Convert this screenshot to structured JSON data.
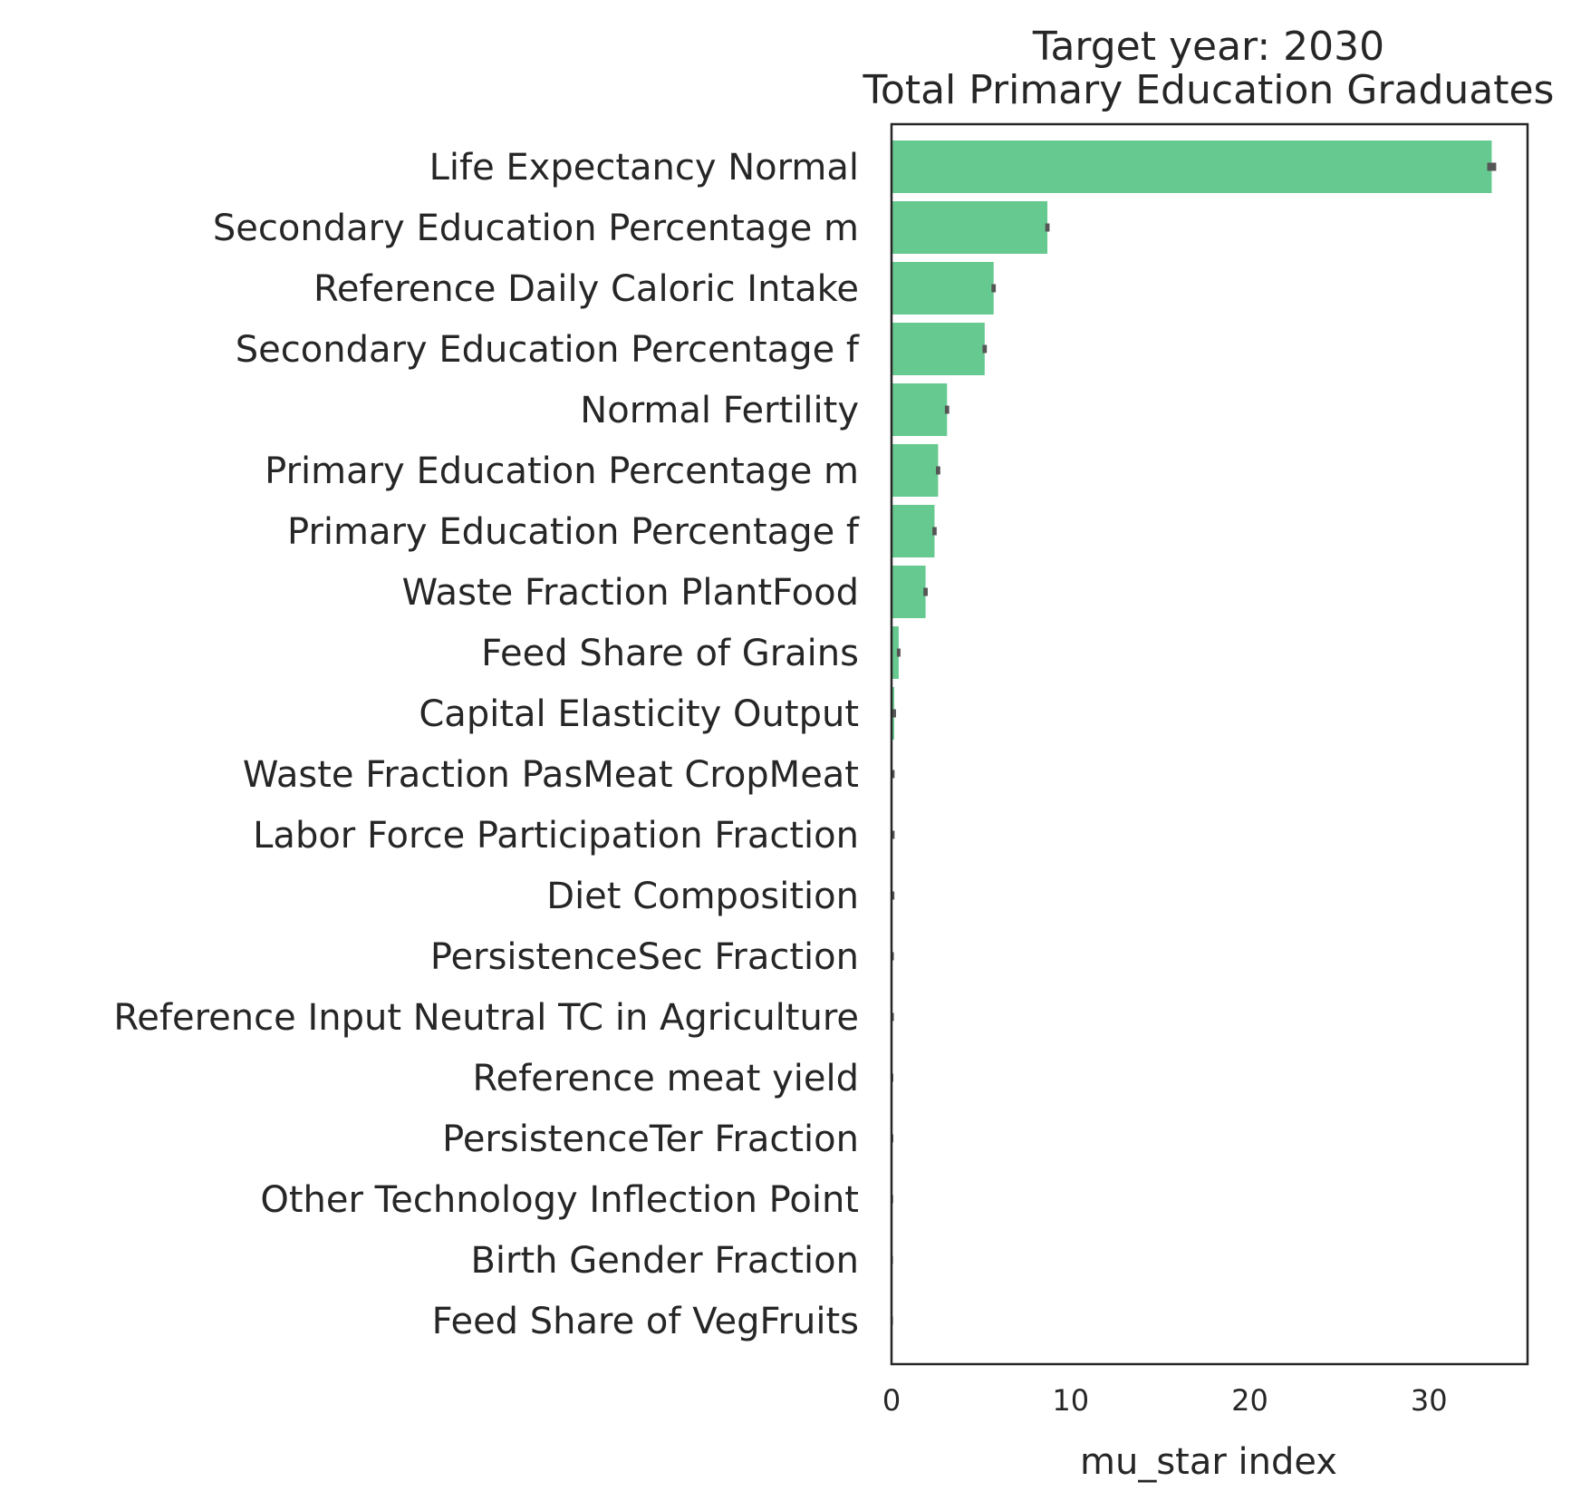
{
  "chart_data": {
    "type": "bar",
    "orientation": "horizontal",
    "title": "Target year: 2030",
    "subtitle": "Total Primary Education Graduates",
    "xlabel": "mu_star index",
    "ylabel": "",
    "xlim": [
      0,
      35.5
    ],
    "xticks": [
      0,
      10,
      20,
      30
    ],
    "grid": false,
    "bar_color": "#66c990",
    "errorbar_color": "#555555",
    "categories": [
      "Life Expectancy Normal",
      "Secondary Education Percentage m",
      "Reference Daily Caloric Intake",
      "Secondary Education Percentage f",
      "Normal Fertility",
      "Primary Education Percentage m",
      "Primary Education Percentage f",
      "Waste Fraction PlantFood",
      "Feed Share of Grains",
      "Capital Elasticity Output",
      "Waste Fraction PasMeat CropMeat",
      "Labor Force Participation Fraction",
      "Diet Composition",
      "PersistenceSec Fraction",
      "Reference Input Neutral TC in Agriculture",
      "Reference meat yield",
      "PersistenceTer Fraction",
      "Other Technology Inflection Point",
      "Birth Gender Fraction",
      "Feed Share of VegFruits"
    ],
    "values": [
      33.5,
      8.7,
      5.7,
      5.2,
      3.1,
      2.6,
      2.4,
      1.9,
      0.4,
      0.15,
      0.05,
      0.05,
      0.04,
      0.03,
      0.03,
      0.02,
      0.02,
      0.02,
      0.01,
      0.01
    ],
    "errors": [
      0.25,
      0.12,
      0.12,
      0.12,
      0.12,
      0.12,
      0.12,
      0.12,
      0.1,
      0.1,
      0.12,
      0.12,
      0.12,
      0.1,
      0.1,
      0.08,
      0.08,
      0.07,
      0.07,
      0.07
    ]
  }
}
